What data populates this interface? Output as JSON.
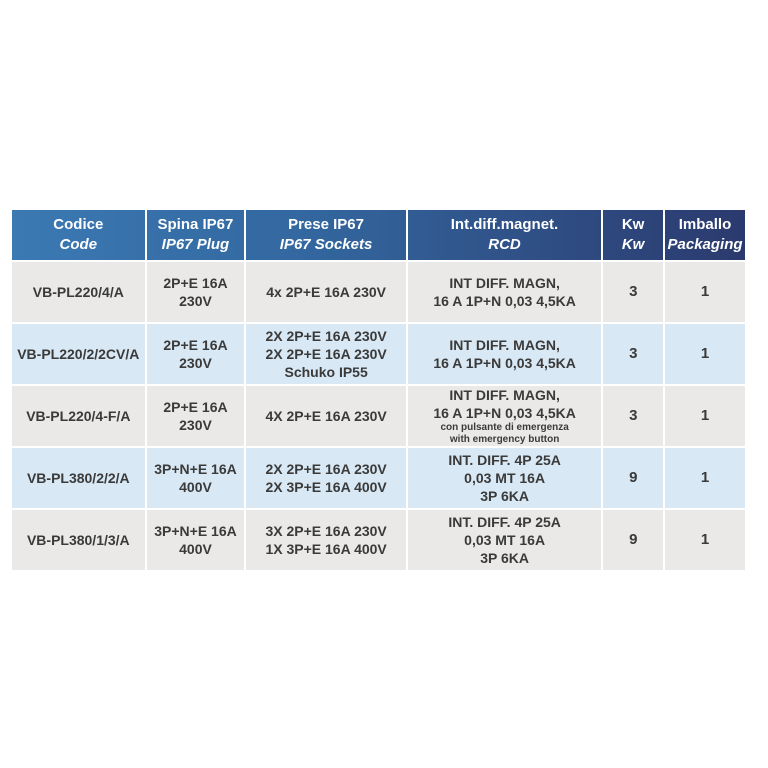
{
  "colors": {
    "header_gradient_left": "#3b79b3",
    "header_gradient_right": "#2b3a6e",
    "row_gray": "#eae9e7",
    "row_blue": "#d8e8f4",
    "header_text": "#ffffff",
    "body_text": "#3a3a3a",
    "separator": "#ffffff"
  },
  "table": {
    "header": [
      {
        "line1": "Codice",
        "line2": "Code"
      },
      {
        "line1": "Spina IP67",
        "line2": "IP67 Plug"
      },
      {
        "line1": "Prese IP67",
        "line2": "IP67 Sockets"
      },
      {
        "line1": "Int.diff.magnet.",
        "line2": "RCD"
      },
      {
        "line1": "Kw",
        "line2": "Kw"
      },
      {
        "line1": "Imballo",
        "line2": "Packaging"
      }
    ],
    "rows": [
      {
        "code": "VB-PL220/4/A",
        "plug": "2P+E 16A\n230V",
        "sockets": "4x 2P+E 16A 230V",
        "rcd": "INT DIFF. MAGN,\n16 A 1P+N 0,03 4,5KA",
        "rcd_note": "",
        "kw": "3",
        "packaging": "1"
      },
      {
        "code": "VB-PL220/2/2CV/A",
        "plug": "2P+E 16A\n230V",
        "sockets": "2X 2P+E 16A 230V\n2X 2P+E 16A 230V\nSchuko IP55",
        "rcd": "INT DIFF. MAGN,\n16 A 1P+N 0,03 4,5KA",
        "rcd_note": "",
        "kw": "3",
        "packaging": "1"
      },
      {
        "code": "VB-PL220/4-F/A",
        "plug": "2P+E 16A\n230V",
        "sockets": "4X 2P+E 16A 230V",
        "rcd": "INT DIFF. MAGN,\n16 A 1P+N 0,03 4,5KA",
        "rcd_note": "con pulsante di emergenza\nwith emergency button",
        "kw": "3",
        "packaging": "1"
      },
      {
        "code": "VB-PL380/2/2/A",
        "plug": "3P+N+E 16A\n400V",
        "sockets": "2X 2P+E 16A 230V\n2X 3P+E 16A 400V",
        "rcd": "INT. DIFF. 4P 25A\n0,03 MT 16A\n3P 6KA",
        "rcd_note": "",
        "kw": "9",
        "packaging": "1"
      },
      {
        "code": "VB-PL380/1/3/A",
        "plug": "3P+N+E 16A\n400V",
        "sockets": "3X 2P+E 16A 230V\n1X 3P+E 16A 400V",
        "rcd": "INT. DIFF. 4P 25A\n0,03 MT 16A\n3P 6KA",
        "rcd_note": "",
        "kw": "9",
        "packaging": "1"
      }
    ]
  }
}
